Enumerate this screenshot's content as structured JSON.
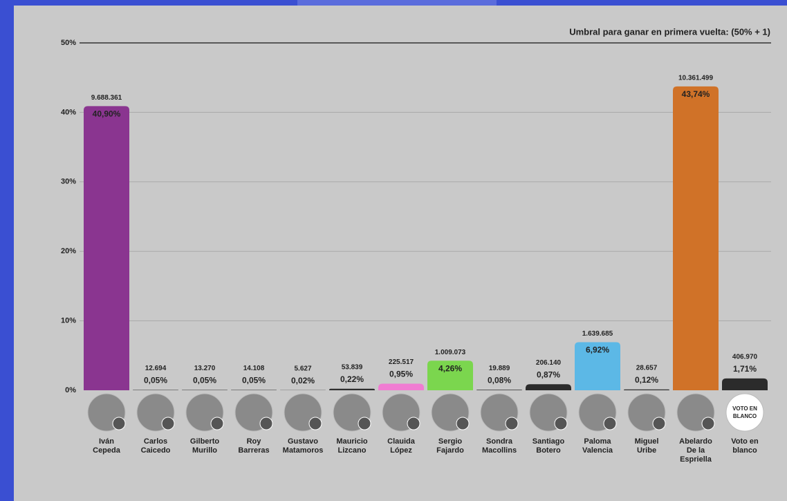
{
  "chart_data": {
    "type": "bar",
    "categories": [
      [
        "Iván",
        "Cepeda"
      ],
      [
        "Carlos",
        "Caicedo"
      ],
      [
        "Gilberto",
        "Murillo"
      ],
      [
        "Roy",
        "Barreras"
      ],
      [
        "Gustavo",
        "Matamoros"
      ],
      [
        "Mauricio",
        "Lizcano"
      ],
      [
        "Clauida",
        "López"
      ],
      [
        "Sergio",
        "Fajardo"
      ],
      [
        "Sondra",
        "Macollins"
      ],
      [
        "Santiago",
        "Botero"
      ],
      [
        "Paloma",
        "Valencia"
      ],
      [
        "Miguel",
        "Uribe"
      ],
      [
        "Abelardo",
        "De la",
        "Espriella"
      ],
      [
        "Voto en",
        "blanco"
      ]
    ],
    "values": [
      40.9,
      0.05,
      0.05,
      0.05,
      0.02,
      0.22,
      0.95,
      4.26,
      0.08,
      0.87,
      6.92,
      0.12,
      43.74,
      1.71
    ],
    "value_labels": [
      "40,90%",
      "0,05%",
      "0,05%",
      "0,05%",
      "0,02%",
      "0,22%",
      "0,95%",
      "4,26%",
      "0,08%",
      "0,87%",
      "6,92%",
      "0,12%",
      "43,74%",
      "1,71%"
    ],
    "votes": [
      9688361,
      12694,
      13270,
      14108,
      5627,
      53839,
      225517,
      1009073,
      19889,
      206140,
      1639685,
      28657,
      10361499,
      406970
    ],
    "vote_labels": [
      "9.688.361",
      "12.694",
      "13.270",
      "14.108",
      "5.627",
      "53.839",
      "225.517",
      "1.009.073",
      "19.889",
      "206.140",
      "1.639.685",
      "28.657",
      "10.361.499",
      "406.970"
    ],
    "colors": [
      "#8a3590",
      "#2e2e2e",
      "#2e2e2e",
      "#2e2e2e",
      "#2e2e2e",
      "#2e2e2e",
      "#f07cd2",
      "#7bd64e",
      "#2e2e2e",
      "#2b2b2b",
      "#5cb8e6",
      "#2e2e2e",
      "#d07228",
      "#2b2b2b"
    ],
    "ylim": [
      0,
      50
    ],
    "yticks": [
      {
        "value": 0,
        "label": "0%"
      },
      {
        "value": 10,
        "label": "10%"
      },
      {
        "value": 20,
        "label": "20%"
      },
      {
        "value": 30,
        "label": "30%"
      },
      {
        "value": 40,
        "label": "40%"
      },
      {
        "value": 50,
        "label": "50%"
      }
    ],
    "grid": true,
    "threshold": 50,
    "threshold_label": "Umbral para ganar en primera vuelta: (50% + 1)",
    "blank_vote_badge": [
      "VOTO EN",
      "BLANCO"
    ]
  }
}
